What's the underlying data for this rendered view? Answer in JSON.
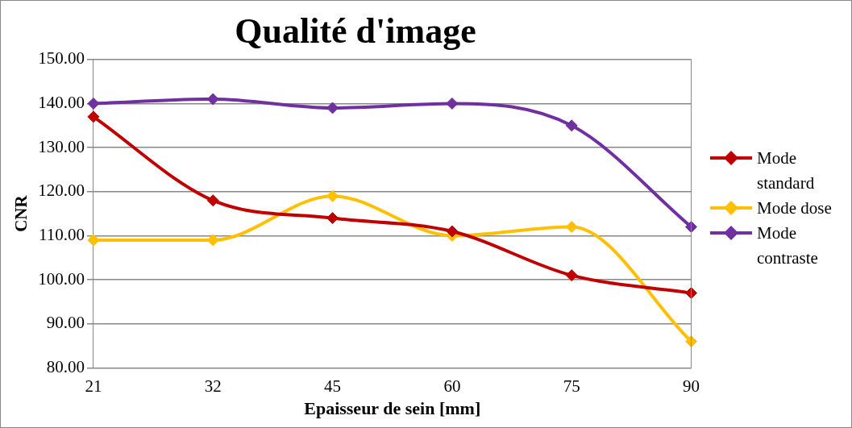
{
  "chart_data": {
    "type": "line",
    "title": "Qualité d'image",
    "xlabel": "Epaisseur de sein [mm]",
    "ylabel": "CNR",
    "categories": [
      "21",
      "32",
      "45",
      "60",
      "75",
      "90"
    ],
    "series": [
      {
        "name": "Mode standard",
        "color": "#c00000",
        "values": [
          137,
          118,
          114,
          111,
          101,
          97
        ]
      },
      {
        "name": "Mode dose",
        "color": "#ffc000",
        "values": [
          109,
          109,
          119,
          110,
          112,
          86
        ]
      },
      {
        "name": "Mode contraste",
        "color": "#7030a0",
        "values": [
          140,
          141,
          139,
          140,
          135,
          112
        ]
      }
    ],
    "ylim": [
      80,
      150
    ],
    "yticks": [
      {
        "value": 80,
        "label": "80.00"
      },
      {
        "value": 90,
        "label": "90.00"
      },
      {
        "value": 100,
        "label": "100.00"
      },
      {
        "value": 110,
        "label": "110.00"
      },
      {
        "value": 120,
        "label": "120.00"
      },
      {
        "value": 130,
        "label": "130.00"
      },
      {
        "value": 140,
        "label": "140.00"
      },
      {
        "value": 150,
        "label": "150.00"
      }
    ],
    "grid": "y",
    "legend": "right",
    "marker": "diamond",
    "line_style": "solid"
  }
}
